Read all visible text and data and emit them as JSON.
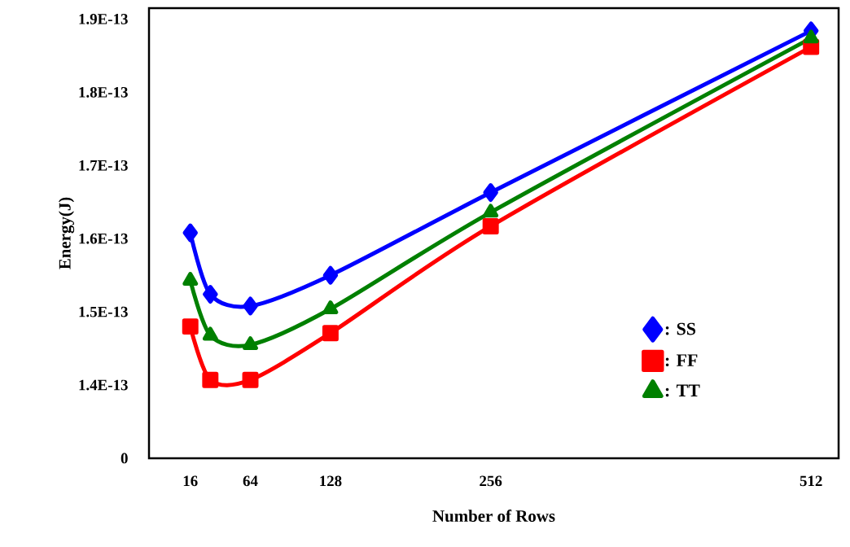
{
  "chart_data": {
    "type": "line",
    "xlabel": "Number of Rows",
    "ylabel": "Energy(J)",
    "x": [
      16,
      32,
      64,
      128,
      256,
      512
    ],
    "series": [
      {
        "name": ": SS",
        "color": "#0000ff",
        "marker": "diamond",
        "values": [
          1.608e-13,
          1.524e-13,
          1.508e-13,
          1.55e-13,
          1.663e-13,
          1.884e-13
        ]
      },
      {
        "name": ": FF",
        "color": "#ff0000",
        "marker": "square",
        "values": [
          1.48e-13,
          1.407e-13,
          1.407e-13,
          1.471e-13,
          1.617e-13,
          1.862e-13
        ]
      },
      {
        "name": ": TT",
        "color": "#008000",
        "marker": "triangle",
        "values": [
          1.543e-13,
          1.468e-13,
          1.455e-13,
          1.504e-13,
          1.636e-13,
          1.874e-13
        ]
      }
    ],
    "xlim": [
      -17,
      534
    ],
    "xticks": [
      16,
      64,
      128,
      256,
      512
    ],
    "ylim": [
      1.3e-13,
      1.915e-13
    ],
    "yticks": [
      {
        "value": 1.3e-13,
        "label": "0"
      },
      {
        "value": 1.4e-13,
        "label": "1.4E-13"
      },
      {
        "value": 1.5e-13,
        "label": "1.5E-13"
      },
      {
        "value": 1.6e-13,
        "label": "1.6E-13"
      },
      {
        "value": 1.7e-13,
        "label": "1.7E-13"
      },
      {
        "value": 1.8e-13,
        "label": "1.8E-13"
      },
      {
        "value": 1.9e-13,
        "label": "1.9E-13"
      }
    ],
    "legend": "right",
    "grid": false,
    "line_style": "solid"
  }
}
